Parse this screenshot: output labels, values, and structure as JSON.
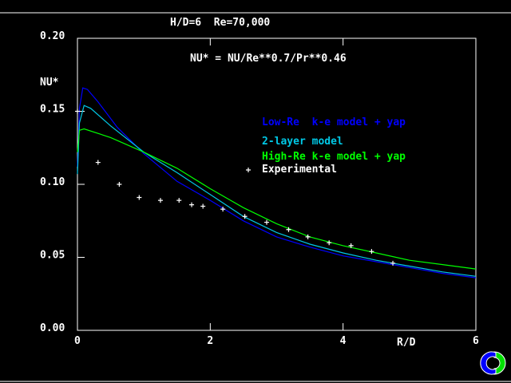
{
  "chart_data": {
    "type": "line",
    "title": "H/D=6  Re=70,000",
    "subtitle": "NU* = NU/Re**0.7/Pr**0.46",
    "xlabel": "R/D",
    "ylabel": "NU*",
    "xlim": [
      0,
      6
    ],
    "ylim": [
      0,
      0.2
    ],
    "xticks": [
      "0",
      "2",
      "4",
      "6"
    ],
    "yticks": [
      "0.00",
      "0.05",
      "0.10",
      "0.15",
      "0.20"
    ],
    "grid": false,
    "legend_position": "right",
    "series": [
      {
        "name": "Low-Re  k-e model + yap",
        "color": "#0000ff",
        "style": "line",
        "x": [
          0,
          0.03,
          0.08,
          0.15,
          0.3,
          0.6,
          1.0,
          1.5,
          2,
          2.5,
          3,
          3.5,
          4,
          4.5,
          5,
          5.5,
          6
        ],
        "y": [
          0.112,
          0.152,
          0.166,
          0.165,
          0.157,
          0.139,
          0.121,
          0.102,
          0.089,
          0.075,
          0.064,
          0.057,
          0.051,
          0.047,
          0.043,
          0.039,
          0.036
        ]
      },
      {
        "name": "2-layer model",
        "color": "#00c8e6",
        "style": "line",
        "x": [
          0,
          0.03,
          0.1,
          0.2,
          0.5,
          1.0,
          1.5,
          2,
          2.5,
          3,
          3.5,
          4,
          4.5,
          5,
          5.5,
          6
        ],
        "y": [
          0.107,
          0.142,
          0.154,
          0.152,
          0.14,
          0.122,
          0.108,
          0.093,
          0.078,
          0.067,
          0.059,
          0.053,
          0.048,
          0.044,
          0.04,
          0.037
        ]
      },
      {
        "name": "High-Re k-e model + yap",
        "color": "#00ff00",
        "style": "line",
        "x": [
          0,
          0.03,
          0.1,
          0.5,
          1.0,
          1.5,
          2,
          2.5,
          3,
          3.5,
          4,
          4.5,
          5,
          5.5,
          6
        ],
        "y": [
          0.122,
          0.137,
          0.138,
          0.132,
          0.122,
          0.111,
          0.097,
          0.084,
          0.073,
          0.064,
          0.058,
          0.053,
          0.048,
          0.045,
          0.042
        ]
      },
      {
        "name": "Experimental",
        "color": "#ffffff",
        "style": "marker-plus",
        "x": [
          0.0,
          0.31,
          0.63,
          0.93,
          1.25,
          1.53,
          1.72,
          1.89,
          2.19,
          2.52,
          2.85,
          3.18,
          3.47,
          3.79,
          4.12,
          4.43,
          4.75
        ],
        "y": [
          0.15,
          0.115,
          0.1,
          0.091,
          0.089,
          0.089,
          0.086,
          0.085,
          0.083,
          0.078,
          0.074,
          0.069,
          0.064,
          0.06,
          0.058,
          0.054,
          0.046
        ]
      }
    ]
  }
}
